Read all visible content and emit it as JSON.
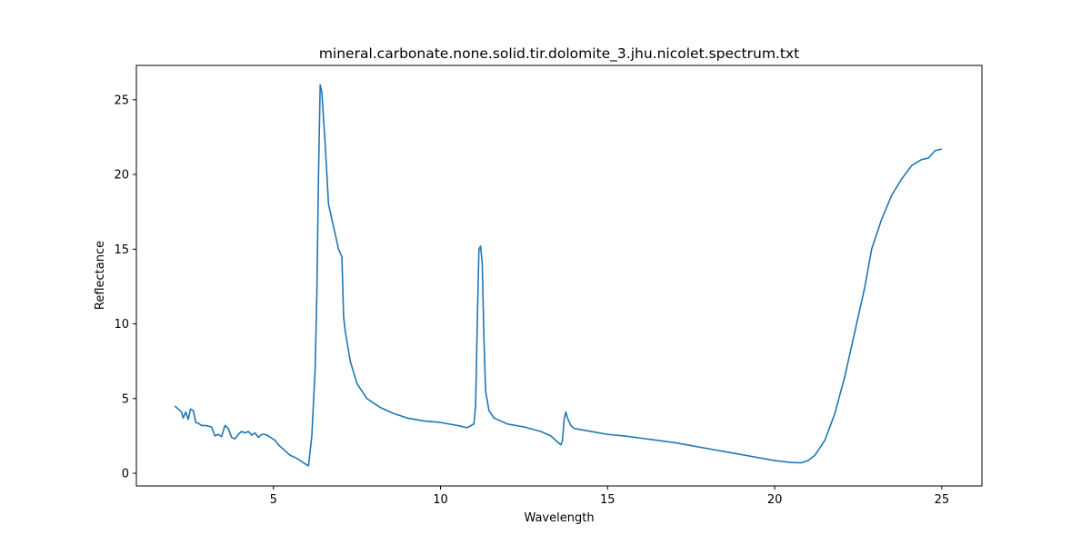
{
  "chart_data": {
    "type": "line",
    "title": "mineral.carbonate.none.solid.tir.dolomite_3.jhu.nicolet.spectrum.txt",
    "xlabel": "Wavelength",
    "ylabel": "Reflectance",
    "xlim": [
      0.9,
      26.2
    ],
    "ylim": [
      -0.85,
      27.3
    ],
    "xticks": [
      5,
      10,
      15,
      20,
      25
    ],
    "yticks": [
      0,
      5,
      10,
      15,
      20,
      25
    ],
    "grid": false,
    "color": "#1f77b4",
    "series": [
      {
        "x": [
          2.05,
          2.15,
          2.25,
          2.3,
          2.38,
          2.45,
          2.52,
          2.6,
          2.68,
          2.75,
          2.85,
          2.95,
          3.05,
          3.15,
          3.25,
          3.35,
          3.45,
          3.55,
          3.65,
          3.75,
          3.85,
          3.95,
          4.05,
          4.15,
          4.25,
          4.35,
          4.45,
          4.55,
          4.65,
          4.75,
          4.85,
          4.95,
          5.05,
          5.15,
          5.3,
          5.5,
          5.7,
          5.9,
          6.05,
          6.15,
          6.25,
          6.3,
          6.35,
          6.4,
          6.45,
          6.55,
          6.65,
          6.8,
          6.95,
          7.05,
          7.1,
          7.15,
          7.3,
          7.5,
          7.8,
          8.2,
          8.6,
          9.0,
          9.5,
          10.0,
          10.5,
          10.8,
          11.0,
          11.05,
          11.1,
          11.15,
          11.2,
          11.25,
          11.3,
          11.35,
          11.45,
          11.6,
          11.8,
          12.0,
          12.5,
          13.0,
          13.3,
          13.5,
          13.6,
          13.65,
          13.7,
          13.75,
          13.8,
          13.9,
          14.0,
          14.5,
          15.0,
          15.5,
          16.0,
          16.5,
          17.0,
          17.5,
          18.0,
          18.5,
          19.0,
          19.5,
          20.0,
          20.5,
          20.8,
          21.0,
          21.2,
          21.5,
          21.8,
          22.1,
          22.4,
          22.7,
          22.9,
          23.2,
          23.5,
          23.8,
          24.1,
          24.4,
          24.6,
          24.8,
          25.0
        ],
        "y": [
          4.5,
          4.3,
          4.1,
          3.7,
          4.1,
          3.6,
          4.3,
          4.2,
          3.4,
          3.35,
          3.2,
          3.2,
          3.15,
          3.1,
          2.5,
          2.6,
          2.45,
          3.2,
          3.0,
          2.4,
          2.3,
          2.6,
          2.8,
          2.7,
          2.8,
          2.55,
          2.7,
          2.4,
          2.6,
          2.6,
          2.5,
          2.35,
          2.2,
          1.9,
          1.6,
          1.2,
          1.0,
          0.7,
          0.5,
          2.5,
          7.0,
          12.0,
          20.0,
          26.0,
          25.5,
          22.0,
          18.0,
          16.5,
          15.0,
          14.5,
          10.5,
          9.5,
          7.5,
          6.0,
          5.0,
          4.4,
          4.0,
          3.7,
          3.5,
          3.4,
          3.2,
          3.05,
          3.3,
          4.5,
          10.0,
          15.0,
          15.2,
          14.0,
          9.0,
          5.5,
          4.2,
          3.7,
          3.5,
          3.3,
          3.1,
          2.8,
          2.5,
          2.1,
          1.9,
          2.2,
          3.6,
          4.1,
          3.7,
          3.2,
          3.0,
          2.8,
          2.6,
          2.5,
          2.35,
          2.2,
          2.05,
          1.85,
          1.65,
          1.45,
          1.25,
          1.05,
          0.85,
          0.72,
          0.7,
          0.85,
          1.2,
          2.2,
          4.0,
          6.5,
          9.5,
          12.5,
          15.0,
          17.0,
          18.6,
          19.7,
          20.6,
          21.0,
          21.1,
          21.6,
          21.7
        ]
      }
    ]
  }
}
